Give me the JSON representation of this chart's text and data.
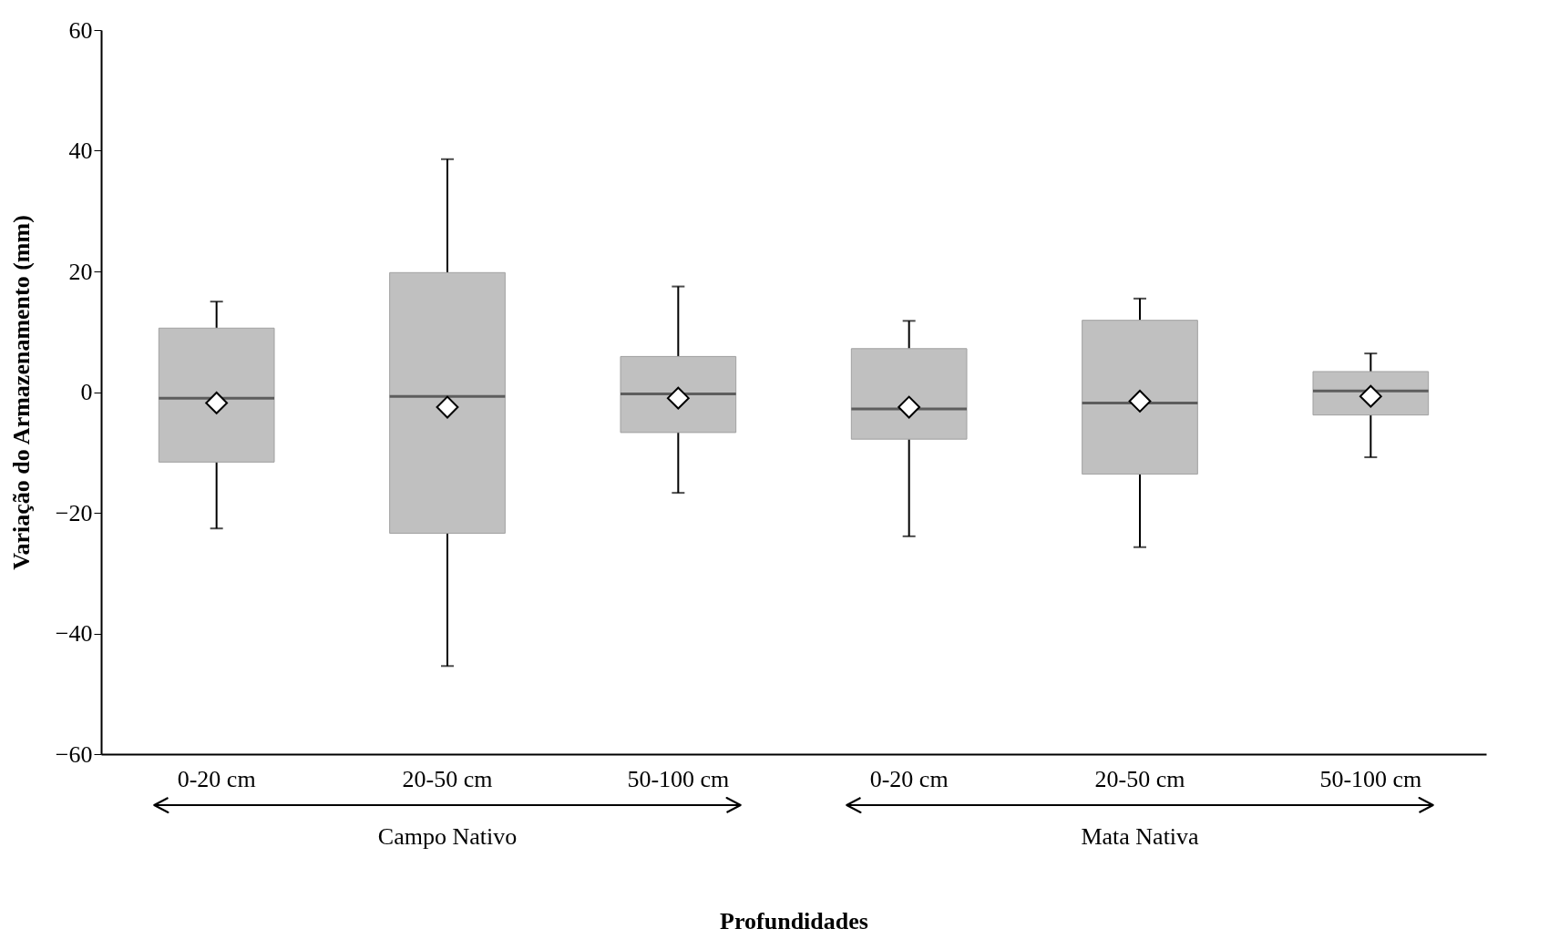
{
  "chart_data": {
    "type": "box",
    "xlabel": "Profundidades",
    "ylabel": "Variação do Armazenamento (mm)",
    "categories": [
      "0-20 cm",
      "20-50 cm",
      "50-100 cm",
      "0-20 cm",
      "20-50 cm",
      "50-100 cm"
    ],
    "boxes": [
      {
        "low": -22.6,
        "q1": -11.6,
        "median": -1.0,
        "q3": 10.6,
        "high": 15.0,
        "mean": -1.8
      },
      {
        "low": -45.4,
        "q1": -23.4,
        "median": -0.7,
        "q3": 19.8,
        "high": 38.6,
        "mean": -2.5
      },
      {
        "low": -16.7,
        "q1": -6.7,
        "median": -0.3,
        "q3": 5.9,
        "high": 17.5,
        "mean": -1.0
      },
      {
        "low": -23.9,
        "q1": -7.8,
        "median": -2.8,
        "q3": 7.2,
        "high": 11.8,
        "mean": -2.5
      },
      {
        "low": -25.7,
        "q1": -13.6,
        "median": -1.8,
        "q3": 11.9,
        "high": 15.5,
        "mean": -1.5
      },
      {
        "low": -10.8,
        "q1": -3.8,
        "median": 0.2,
        "q3": 3.4,
        "high": 6.4,
        "mean": -0.7
      }
    ],
    "color": "#c0c0c0",
    "ylim": [
      -60,
      60
    ],
    "yticks": [
      -60,
      -40,
      -20,
      0,
      20,
      40,
      60
    ],
    "grid": false,
    "annotations": [
      "Campo Nativo",
      "Mata Nativa"
    ]
  }
}
